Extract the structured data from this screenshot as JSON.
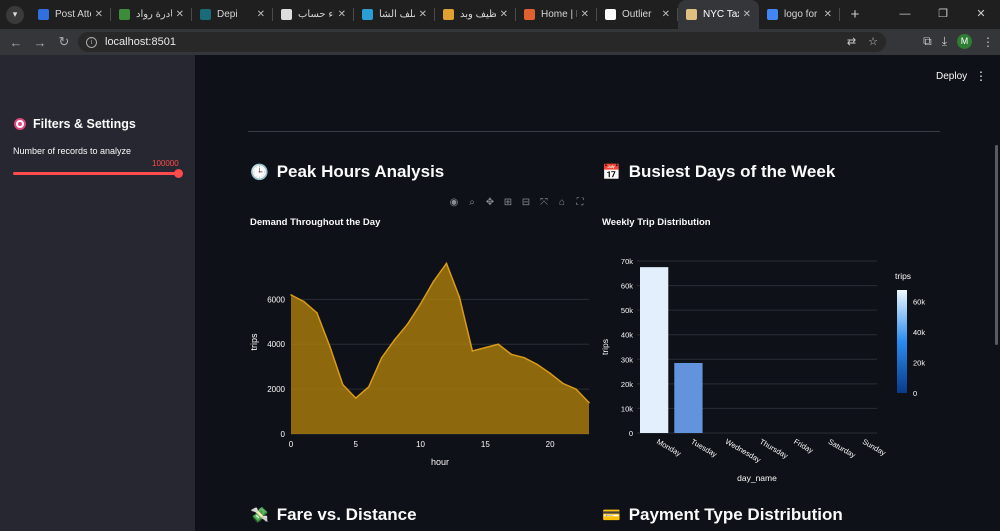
{
  "browser": {
    "tabs": [
      {
        "label": "Post Atten",
        "fav": "#2f6fe0"
      },
      {
        "label": "مبادرة رواد",
        "fav": "#3c8c3c"
      },
      {
        "label": "Depi",
        "fav": "#1a6b7a"
      },
      {
        "label": "إنشاء حساب",
        "fav": "#dddddd"
      },
      {
        "label": "الملف الشا",
        "fav": "#2a9fd6"
      },
      {
        "label": "تنظيف وبد",
        "fav": "#e0a030"
      },
      {
        "label": "Home | Fr",
        "fav": "#e06030"
      },
      {
        "label": "Outlier",
        "fav": "#ffffff"
      },
      {
        "label": "NYC Taxi T",
        "fav": "#e0c080",
        "active": true
      },
      {
        "label": "logo for d",
        "fav": "#4285f4"
      }
    ],
    "url": "localhost:8501",
    "profile_initial": "M"
  },
  "header": {
    "deploy_label": "Deploy"
  },
  "sidebar": {
    "title": "Filters & Settings",
    "slider_label": "Number of records to analyze",
    "slider_value": "100000"
  },
  "sections": {
    "peak_title": "Peak Hours Analysis",
    "peak_sub": "Demand Throughout the Day",
    "busy_title": "Busiest Days of the Week",
    "busy_sub": "Weekly Trip Distribution",
    "fare_title": "Fare vs. Distance",
    "payment_title": "Payment Type Distribution"
  },
  "chart_data": [
    {
      "type": "area",
      "title": "Demand Throughout the Day",
      "xlabel": "hour",
      "ylabel": "trips",
      "x": [
        0,
        1,
        2,
        3,
        4,
        5,
        6,
        7,
        8,
        9,
        10,
        11,
        12,
        13,
        14,
        15,
        16,
        17,
        18,
        19,
        20,
        21,
        22,
        23
      ],
      "values": [
        6200,
        5900,
        5400,
        3900,
        2200,
        1600,
        2100,
        3400,
        4200,
        4900,
        5800,
        6800,
        7600,
        6100,
        3700,
        3850,
        4000,
        3550,
        3400,
        3100,
        2700,
        2250,
        2000,
        1400
      ],
      "xticks": [
        0,
        5,
        10,
        15,
        20
      ],
      "yticks": [
        0,
        2000,
        4000,
        6000
      ],
      "ylim": [
        0,
        8200
      ],
      "xlim": [
        0,
        23
      ],
      "color": "#b8860b"
    },
    {
      "type": "bar",
      "title": "Weekly Trip Distribution",
      "xlabel": "day_name",
      "ylabel": "trips",
      "categories": [
        "Monday",
        "Tuesday",
        "Wednesday",
        "Thursday",
        "Friday",
        "Saturday",
        "Sunday"
      ],
      "values": [
        67500,
        28500,
        0,
        0,
        0,
        0,
        0
      ],
      "yticks": [
        "0",
        "10k",
        "20k",
        "30k",
        "40k",
        "50k",
        "60k",
        "70k"
      ],
      "ylim": [
        0,
        70000
      ],
      "colorbar": {
        "title": "trips",
        "ticks": [
          "0",
          "20k",
          "40k",
          "60k"
        ]
      }
    }
  ]
}
